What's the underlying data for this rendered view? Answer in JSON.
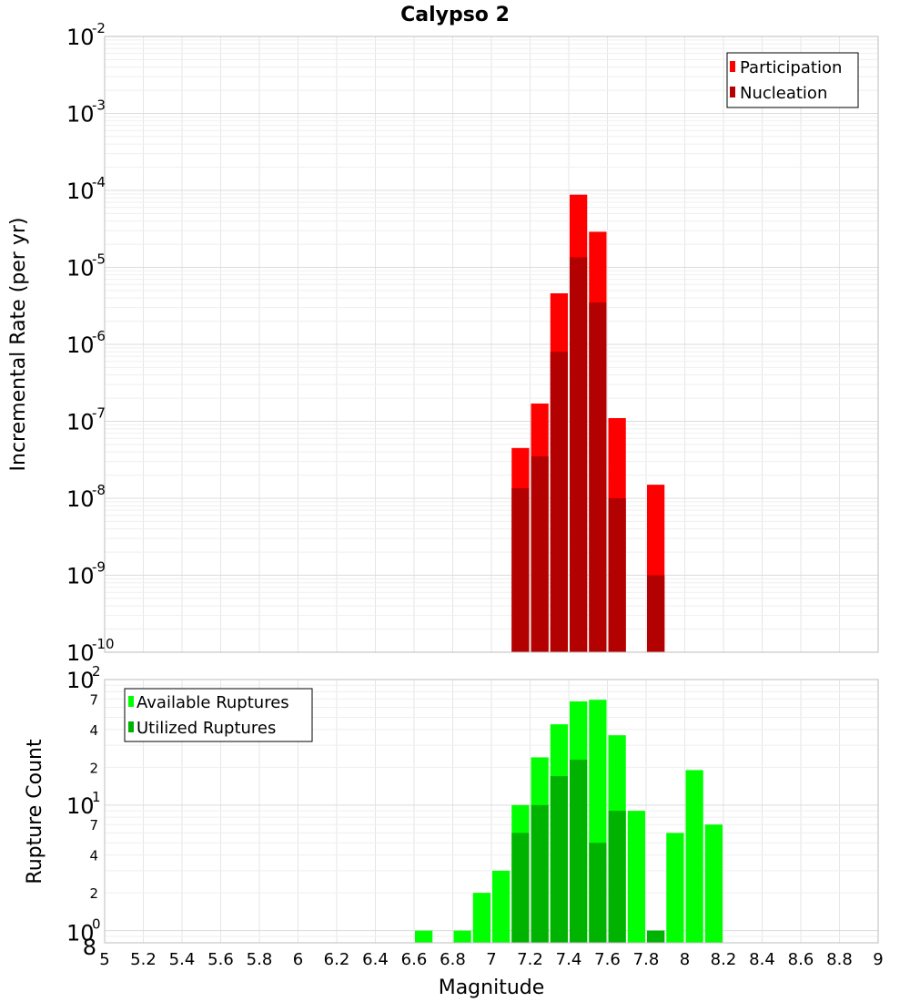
{
  "chart_data": [
    {
      "type": "bar",
      "title": "Calypso 2",
      "ylabel": "Incremental Rate (per yr)",
      "yscale": "log",
      "ylim": [
        1e-10,
        0.01
      ],
      "xlim": [
        5,
        9
      ],
      "bar_width": 0.1,
      "grid": true,
      "legend_position": "top-right",
      "y_tick_labels": [
        {
          "base": "10",
          "exp": "-10"
        },
        {
          "base": "10",
          "exp": "-9"
        },
        {
          "base": "10",
          "exp": "-8"
        },
        {
          "base": "10",
          "exp": "-7"
        },
        {
          "base": "10",
          "exp": "-6"
        },
        {
          "base": "10",
          "exp": "-5"
        },
        {
          "base": "10",
          "exp": "-4"
        },
        {
          "base": "10",
          "exp": "-3"
        },
        {
          "base": "10",
          "exp": "-2"
        }
      ],
      "series": [
        {
          "name": "Participation",
          "color": "#ff0000",
          "x": [
            7.15,
            7.25,
            7.35,
            7.45,
            7.55,
            7.65,
            7.85
          ],
          "values": [
            4.5e-08,
            1.7e-07,
            4.6e-06,
            8.8e-05,
            2.9e-05,
            1.1e-07,
            1.5e-08
          ]
        },
        {
          "name": "Nucleation",
          "color": "#b30000",
          "x": [
            7.15,
            7.25,
            7.35,
            7.45,
            7.55,
            7.65,
            7.85
          ],
          "values": [
            1.35e-08,
            3.5e-08,
            8e-07,
            1.35e-05,
            3.5e-06,
            1e-08,
            1e-09
          ]
        }
      ]
    },
    {
      "type": "bar",
      "ylabel": "Rupture Count",
      "xlabel": "Magnitude",
      "yscale": "log",
      "ylim": [
        0.8,
        100
      ],
      "xlim": [
        5,
        9
      ],
      "bar_width": 0.1,
      "grid": true,
      "legend_position": "top-left",
      "x_tick_labels": [
        "5",
        "5.2",
        "5.4",
        "5.6",
        "5.8",
        "6",
        "6.2",
        "6.4",
        "6.6",
        "6.8",
        "7",
        "7.2",
        "7.4",
        "7.6",
        "7.8",
        "8",
        "8.2",
        "8.4",
        "8.6",
        "8.8",
        "9"
      ],
      "y_major_labels": [
        {
          "base": "10",
          "exp": "0"
        },
        {
          "base": "10",
          "exp": "1"
        },
        {
          "base": "10",
          "exp": "2"
        }
      ],
      "y_minor_labels": [
        "8",
        "2",
        "4",
        "7",
        "2",
        "4",
        "7"
      ],
      "series": [
        {
          "name": "Available Ruptures",
          "color": "#00ff00",
          "x": [
            6.65,
            6.85,
            6.95,
            7.05,
            7.15,
            7.25,
            7.35,
            7.45,
            7.55,
            7.65,
            7.75,
            7.85,
            7.95,
            8.05,
            8.15
          ],
          "values": [
            1,
            1,
            2,
            3,
            10,
            24,
            44,
            67,
            69,
            36,
            9,
            1,
            6,
            19,
            7
          ]
        },
        {
          "name": "Utilized Ruptures",
          "color": "#00b300",
          "x": [
            7.15,
            7.25,
            7.35,
            7.45,
            7.55,
            7.65,
            7.85
          ],
          "values": [
            6,
            10,
            17,
            23,
            5,
            9,
            1
          ]
        }
      ]
    }
  ]
}
